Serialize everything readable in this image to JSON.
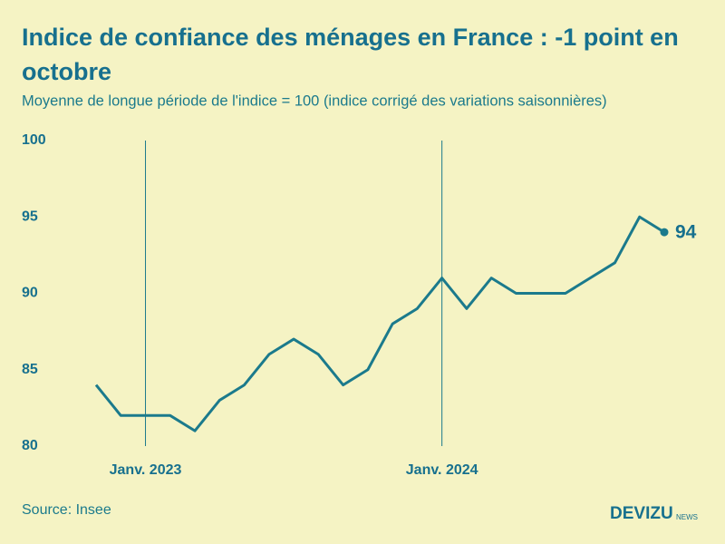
{
  "chart_data": {
    "type": "line",
    "title": "Indice de confiance des ménages en France : -1 point en octobre",
    "subtitle": "Moyenne de longue période de l'indice = 100 (indice corrigé des variations saisonnières)",
    "source": "Source: Insee",
    "brand": "DEVIZU",
    "brand_suffix": "NEWS",
    "categories": [
      null,
      null,
      "Janv. 2023",
      null,
      null,
      null,
      null,
      null,
      null,
      null,
      null,
      null,
      null,
      null,
      "Janv. 2024",
      null,
      null,
      null,
      null,
      null,
      null,
      null,
      null,
      null
    ],
    "series": [
      {
        "name": "Indice de confiance",
        "color": "#1b7a8c",
        "values": [
          84,
          82,
          82,
          82,
          81,
          83,
          84,
          86,
          87,
          86,
          84,
          85,
          88,
          89,
          91,
          89,
          91,
          90,
          90,
          90,
          91,
          92,
          95,
          94
        ]
      }
    ],
    "ylim": [
      80,
      100
    ],
    "yticks": [
      80,
      85,
      90,
      95,
      100
    ],
    "grid": false
  }
}
